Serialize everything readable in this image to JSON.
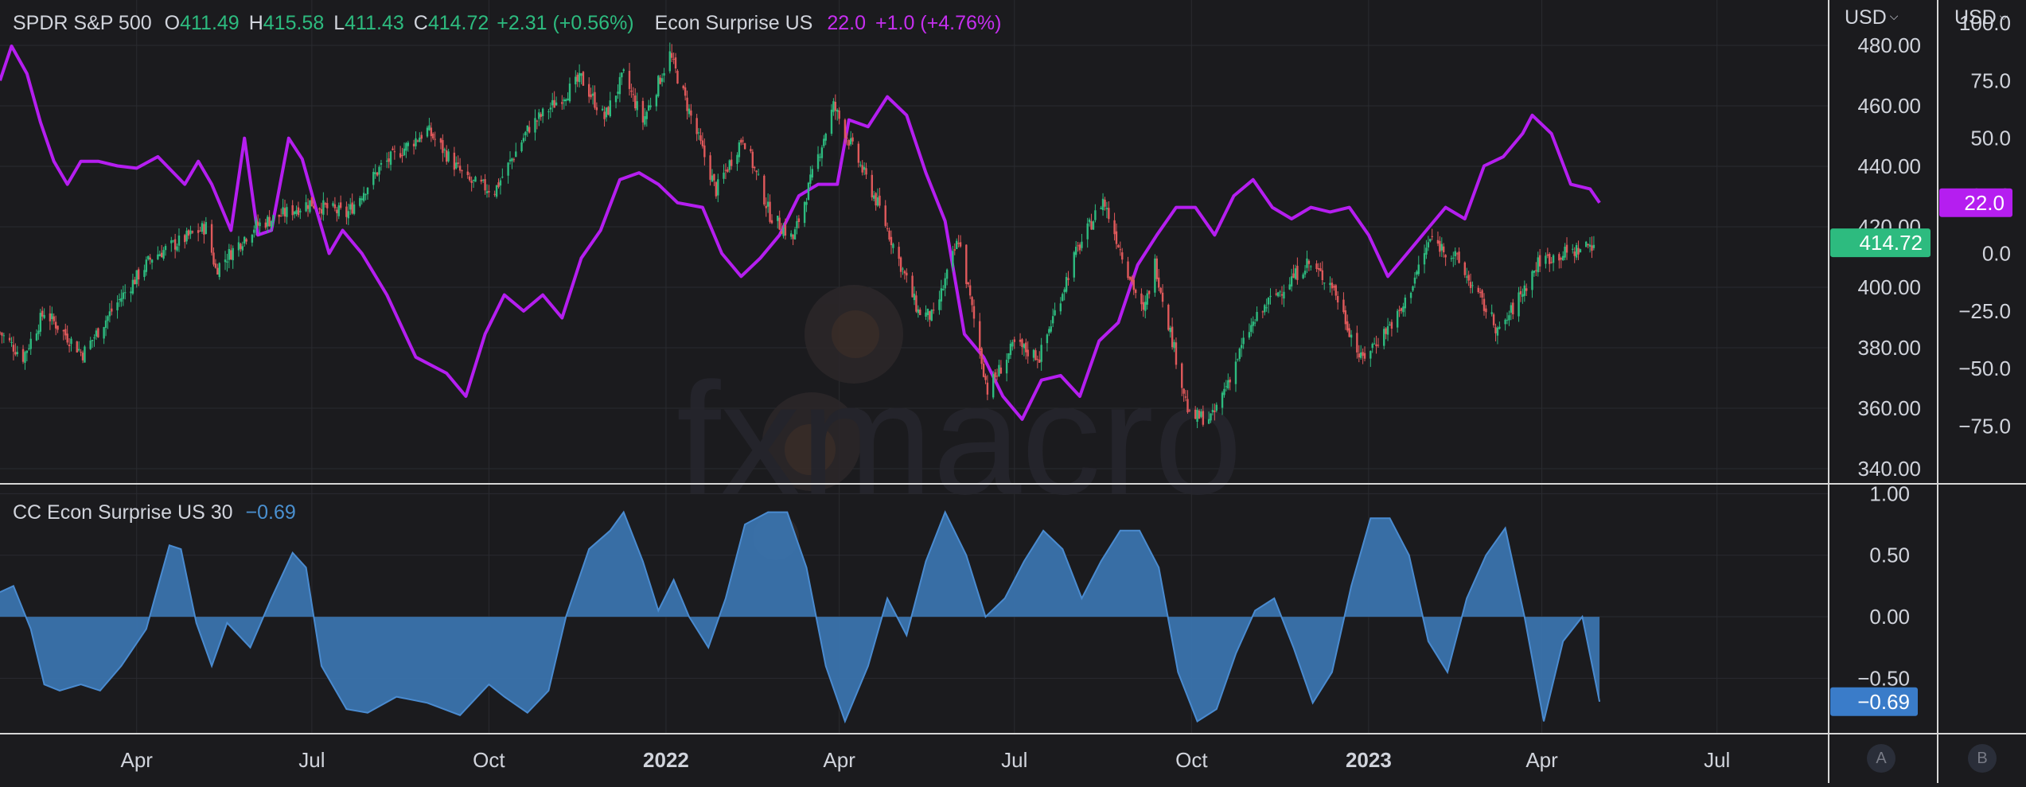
{
  "main_legend": {
    "symbol": "SPDR S&P 500",
    "o_label": "O",
    "o_value": "411.49",
    "h_label": "H",
    "h_value": "415.58",
    "l_label": "L",
    "l_value": "411.43",
    "c_label": "C",
    "c_value": "414.72",
    "change": "+2.31 (+0.56%)",
    "econ_name": "Econ Surprise US",
    "econ_value": "22.0",
    "econ_change": "+1.0 (+4.76%)"
  },
  "sub_legend": {
    "name": "CC Econ Surprise US 30",
    "value": "−0.69"
  },
  "scales": {
    "left_currency": "USD",
    "right_currency": "USD",
    "button_a": "A",
    "button_b": "B"
  },
  "watermark": "fxmacro",
  "colors": {
    "background": "#1b1b1e",
    "grid": "#2a2b30",
    "up": "#2dbb7f",
    "down": "#e0595b",
    "econ": "#b51ef0",
    "cc": "#3a73ad",
    "cc_line": "#4a8bd0"
  },
  "chart_data": [
    {
      "type": "candlestick",
      "name": "SPDR S&P 500",
      "ylim": [
        335,
        495
      ],
      "yticks": [
        "480.00",
        "460.00",
        "440.00",
        "420.00",
        "400.00",
        "380.00",
        "360.00",
        "340.00"
      ],
      "ytick_values": [
        480,
        460,
        440,
        420,
        400,
        380,
        360,
        340
      ],
      "last_price_label": "414.72",
      "last_price": 414.72,
      "x_labels": [
        "Apr",
        "Jul",
        "Oct",
        "2022",
        "Apr",
        "Jul",
        "Oct",
        "2023",
        "Apr",
        "Jul"
      ],
      "x_dates": [
        "2021-04-01",
        "2021-07-01",
        "2021-10-01",
        "2022-01-01",
        "2022-04-01",
        "2022-07-01",
        "2022-10-01",
        "2023-01-01",
        "2023-04-01",
        "2023-07-01"
      ],
      "x_range": [
        "2021-01-20",
        "2023-08-28"
      ],
      "close_path": [
        [
          "2021-01-20",
          385
        ],
        [
          "2021-02-01",
          377
        ],
        [
          "2021-02-12",
          392
        ],
        [
          "2021-03-04",
          378
        ],
        [
          "2021-03-22",
          395
        ],
        [
          "2021-04-09",
          410
        ],
        [
          "2021-05-07",
          420
        ],
        [
          "2021-05-12",
          406
        ],
        [
          "2021-06-01",
          420
        ],
        [
          "2021-06-30",
          428
        ],
        [
          "2021-07-19",
          424
        ],
        [
          "2021-08-06",
          440
        ],
        [
          "2021-08-30",
          452
        ],
        [
          "2021-09-20",
          435
        ],
        [
          "2021-10-04",
          432
        ],
        [
          "2021-10-22",
          453
        ],
        [
          "2021-11-18",
          469
        ],
        [
          "2021-11-30",
          456
        ],
        [
          "2021-12-10",
          470
        ],
        [
          "2021-12-20",
          455
        ],
        [
          "2022-01-03",
          477
        ],
        [
          "2022-01-27",
          432
        ],
        [
          "2022-02-10",
          450
        ],
        [
          "2022-02-24",
          424
        ],
        [
          "2022-03-08",
          416
        ],
        [
          "2022-03-29",
          460
        ],
        [
          "2022-04-22",
          426
        ],
        [
          "2022-05-12",
          392
        ],
        [
          "2022-05-20",
          390
        ],
        [
          "2022-06-02",
          416
        ],
        [
          "2022-06-17",
          366
        ],
        [
          "2022-07-01",
          381
        ],
        [
          "2022-07-14",
          377
        ],
        [
          "2022-08-01",
          410
        ],
        [
          "2022-08-16",
          429
        ],
        [
          "2022-09-06",
          391
        ],
        [
          "2022-09-12",
          408
        ],
        [
          "2022-09-30",
          357
        ],
        [
          "2022-10-12",
          357
        ],
        [
          "2022-10-31",
          386
        ],
        [
          "2022-11-10",
          395
        ],
        [
          "2022-11-30",
          408
        ],
        [
          "2022-12-13",
          401
        ],
        [
          "2022-12-28",
          376
        ],
        [
          "2023-01-18",
          392
        ],
        [
          "2023-02-02",
          416
        ],
        [
          "2023-02-15",
          410
        ],
        [
          "2023-03-10",
          385
        ],
        [
          "2023-03-31",
          409
        ],
        [
          "2023-04-18",
          412
        ],
        [
          "2023-04-28",
          414.72
        ]
      ]
    },
    {
      "type": "line",
      "name": "Econ Surprise US",
      "ylim": [
        -100,
        110
      ],
      "yticks": [
        "100.0",
        "75.0",
        "50.0",
        "25.0",
        "0.0",
        "−25.0",
        "−50.0",
        "−75.0"
      ],
      "ytick_values": [
        100,
        75,
        50,
        25,
        0,
        -25,
        -50,
        -75
      ],
      "last_value_label": "22.0",
      "last_value": 22.0,
      "points": [
        [
          "2021-01-20",
          75
        ],
        [
          "2021-01-26",
          90
        ],
        [
          "2021-02-03",
          78
        ],
        [
          "2021-02-10",
          57
        ],
        [
          "2021-02-17",
          40
        ],
        [
          "2021-02-24",
          30
        ],
        [
          "2021-03-03",
          40
        ],
        [
          "2021-03-12",
          40
        ],
        [
          "2021-03-22",
          38
        ],
        [
          "2021-04-01",
          37
        ],
        [
          "2021-04-12",
          42
        ],
        [
          "2021-04-26",
          30
        ],
        [
          "2021-05-03",
          40
        ],
        [
          "2021-05-10",
          30
        ],
        [
          "2021-05-20",
          10
        ],
        [
          "2021-05-27",
          50
        ],
        [
          "2021-06-03",
          8
        ],
        [
          "2021-06-10",
          10
        ],
        [
          "2021-06-19",
          50
        ],
        [
          "2021-06-26",
          41
        ],
        [
          "2021-07-03",
          20
        ],
        [
          "2021-07-10",
          0
        ],
        [
          "2021-07-17",
          10
        ],
        [
          "2021-07-27",
          0
        ],
        [
          "2021-08-09",
          -18
        ],
        [
          "2021-08-24",
          -45
        ],
        [
          "2021-09-09",
          -52
        ],
        [
          "2021-09-19",
          -62
        ],
        [
          "2021-09-29",
          -35
        ],
        [
          "2021-10-09",
          -18
        ],
        [
          "2021-10-19",
          -25
        ],
        [
          "2021-10-29",
          -18
        ],
        [
          "2021-11-08",
          -28
        ],
        [
          "2021-11-18",
          -2
        ],
        [
          "2021-11-28",
          10
        ],
        [
          "2021-12-08",
          32
        ],
        [
          "2021-12-18",
          35
        ],
        [
          "2021-12-28",
          30
        ],
        [
          "2022-01-07",
          22
        ],
        [
          "2022-01-20",
          20
        ],
        [
          "2022-01-30",
          0
        ],
        [
          "2022-02-09",
          -10
        ],
        [
          "2022-02-19",
          -2
        ],
        [
          "2022-03-01",
          8
        ],
        [
          "2022-03-11",
          25
        ],
        [
          "2022-03-21",
          30
        ],
        [
          "2022-03-31",
          30
        ],
        [
          "2022-04-06",
          58
        ],
        [
          "2022-04-16",
          55
        ],
        [
          "2022-04-26",
          68
        ],
        [
          "2022-05-06",
          60
        ],
        [
          "2022-05-16",
          35
        ],
        [
          "2022-05-26",
          14
        ],
        [
          "2022-06-05",
          -35
        ],
        [
          "2022-06-15",
          -45
        ],
        [
          "2022-06-25",
          -62
        ],
        [
          "2022-07-05",
          -72
        ],
        [
          "2022-07-15",
          -55
        ],
        [
          "2022-07-25",
          -53
        ],
        [
          "2022-08-04",
          -62
        ],
        [
          "2022-08-14",
          -38
        ],
        [
          "2022-08-24",
          -30
        ],
        [
          "2022-09-03",
          -5
        ],
        [
          "2022-09-13",
          8
        ],
        [
          "2022-09-23",
          20
        ],
        [
          "2022-10-03",
          20
        ],
        [
          "2022-10-13",
          8
        ],
        [
          "2022-10-23",
          25
        ],
        [
          "2022-11-02",
          32
        ],
        [
          "2022-11-12",
          20
        ],
        [
          "2022-11-22",
          15
        ],
        [
          "2022-12-02",
          20
        ],
        [
          "2022-12-12",
          18
        ],
        [
          "2022-12-22",
          20
        ],
        [
          "2023-01-01",
          8
        ],
        [
          "2023-01-11",
          -10
        ],
        [
          "2023-01-21",
          0
        ],
        [
          "2023-01-31",
          10
        ],
        [
          "2023-02-10",
          20
        ],
        [
          "2023-02-20",
          15
        ],
        [
          "2023-03-02",
          38
        ],
        [
          "2023-03-12",
          42
        ],
        [
          "2023-03-22",
          52
        ],
        [
          "2023-03-27",
          60
        ],
        [
          "2023-04-06",
          52
        ],
        [
          "2023-04-16",
          30
        ],
        [
          "2023-04-26",
          28
        ],
        [
          "2023-05-01",
          22
        ]
      ]
    },
    {
      "type": "area",
      "name": "CC Econ Surprise US 30",
      "ylim": [
        -0.95,
        1.08
      ],
      "yticks": [
        "1.00",
        "0.50",
        "0.00",
        "−0.50"
      ],
      "ytick_values": [
        1.0,
        0.5,
        0.0,
        -0.5
      ],
      "last_value_label": "−0.69",
      "last_value": -0.69,
      "points": [
        [
          "2021-01-20",
          0.2
        ],
        [
          "2021-01-27",
          0.25
        ],
        [
          "2021-02-05",
          -0.1
        ],
        [
          "2021-02-12",
          -0.55
        ],
        [
          "2021-02-20",
          -0.6
        ],
        [
          "2021-03-03",
          -0.55
        ],
        [
          "2021-03-13",
          -0.6
        ],
        [
          "2021-03-24",
          -0.4
        ],
        [
          "2021-04-06",
          -0.1
        ],
        [
          "2021-04-13",
          0.3
        ],
        [
          "2021-04-18",
          0.58
        ],
        [
          "2021-04-24",
          0.55
        ],
        [
          "2021-05-02",
          -0.05
        ],
        [
          "2021-05-10",
          -0.4
        ],
        [
          "2021-05-18",
          -0.05
        ],
        [
          "2021-05-30",
          -0.25
        ],
        [
          "2021-06-10",
          0.15
        ],
        [
          "2021-06-21",
          0.52
        ],
        [
          "2021-06-28",
          0.4
        ],
        [
          "2021-07-06",
          -0.4
        ],
        [
          "2021-07-19",
          -0.75
        ],
        [
          "2021-07-30",
          -0.78
        ],
        [
          "2021-08-14",
          -0.65
        ],
        [
          "2021-08-30",
          -0.7
        ],
        [
          "2021-09-16",
          -0.8
        ],
        [
          "2021-10-01",
          -0.55
        ],
        [
          "2021-10-09",
          -0.65
        ],
        [
          "2021-10-21",
          -0.78
        ],
        [
          "2021-11-01",
          -0.6
        ],
        [
          "2021-11-10",
          0.0
        ],
        [
          "2021-11-22",
          0.55
        ],
        [
          "2021-12-03",
          0.7
        ],
        [
          "2021-12-10",
          0.85
        ],
        [
          "2021-12-20",
          0.45
        ],
        [
          "2021-12-28",
          0.05
        ],
        [
          "2022-01-05",
          0.3
        ],
        [
          "2022-01-13",
          0.0
        ],
        [
          "2022-01-23",
          -0.25
        ],
        [
          "2022-02-01",
          0.15
        ],
        [
          "2022-02-11",
          0.75
        ],
        [
          "2022-02-23",
          0.85
        ],
        [
          "2022-03-05",
          0.85
        ],
        [
          "2022-03-15",
          0.4
        ],
        [
          "2022-03-25",
          -0.4
        ],
        [
          "2022-04-04",
          -0.85
        ],
        [
          "2022-04-16",
          -0.4
        ],
        [
          "2022-04-26",
          0.15
        ],
        [
          "2022-05-06",
          -0.15
        ],
        [
          "2022-05-16",
          0.45
        ],
        [
          "2022-05-26",
          0.85
        ],
        [
          "2022-06-06",
          0.5
        ],
        [
          "2022-06-16",
          0.0
        ],
        [
          "2022-06-26",
          0.15
        ],
        [
          "2022-07-06",
          0.45
        ],
        [
          "2022-07-16",
          0.7
        ],
        [
          "2022-07-26",
          0.55
        ],
        [
          "2022-08-05",
          0.15
        ],
        [
          "2022-08-15",
          0.45
        ],
        [
          "2022-08-25",
          0.7
        ],
        [
          "2022-09-04",
          0.7
        ],
        [
          "2022-09-14",
          0.4
        ],
        [
          "2022-09-24",
          -0.45
        ],
        [
          "2022-10-04",
          -0.85
        ],
        [
          "2022-10-14",
          -0.75
        ],
        [
          "2022-10-24",
          -0.3
        ],
        [
          "2022-11-03",
          0.05
        ],
        [
          "2022-11-13",
          0.15
        ],
        [
          "2022-11-23",
          -0.25
        ],
        [
          "2022-12-03",
          -0.7
        ],
        [
          "2022-12-13",
          -0.45
        ],
        [
          "2022-12-23",
          0.25
        ],
        [
          "2023-01-02",
          0.8
        ],
        [
          "2023-01-12",
          0.8
        ],
        [
          "2023-01-22",
          0.5
        ],
        [
          "2023-02-01",
          -0.2
        ],
        [
          "2023-02-11",
          -0.45
        ],
        [
          "2023-02-21",
          0.15
        ],
        [
          "2023-03-03",
          0.5
        ],
        [
          "2023-03-13",
          0.72
        ],
        [
          "2023-03-23",
          0.0
        ],
        [
          "2023-04-02",
          -0.85
        ],
        [
          "2023-04-12",
          -0.2
        ],
        [
          "2023-04-22",
          0.0
        ],
        [
          "2023-05-01",
          -0.69
        ]
      ]
    }
  ]
}
